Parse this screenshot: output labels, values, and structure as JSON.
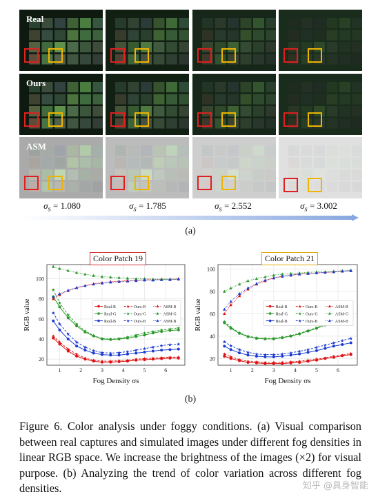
{
  "figure": {
    "row_labels": [
      "Real",
      "Ours",
      "ASM"
    ],
    "sigma_labels": [
      "1.080",
      "1.785",
      "2.552",
      "3.002"
    ],
    "sigma_symbol": "σ",
    "sigma_subscript": "s",
    "subfigure_a_label": "(a)",
    "subfigure_b_label": "(b)"
  },
  "chart_data": [
    {
      "type": "line",
      "title": "Color Patch 19",
      "title_border_color": "#d03030",
      "xlabel": "Fog Density σs",
      "ylabel": "RGB value",
      "xlim": [
        0.4,
        6.9
      ],
      "ylim": [
        14,
        114
      ],
      "xticks": [
        1,
        2,
        3,
        4,
        5,
        6
      ],
      "yticks": [
        20,
        40,
        60,
        80,
        100
      ],
      "legend_position": "center-right",
      "x": [
        0.7,
        1.0,
        1.4,
        1.8,
        2.2,
        2.6,
        3.0,
        3.4,
        3.8,
        4.2,
        4.6,
        5.0,
        5.4,
        5.8,
        6.2,
        6.6
      ],
      "series": [
        {
          "name": "Real-R",
          "color": "#e01010",
          "marker": "circle",
          "dash": "solid",
          "values": [
            41,
            35,
            28,
            23,
            20,
            18,
            17,
            17,
            17.5,
            18,
            19,
            19.5,
            20,
            20.5,
            21,
            21
          ]
        },
        {
          "name": "Real-G",
          "color": "#2a9a2a",
          "marker": "circle",
          "dash": "solid",
          "values": [
            82,
            72,
            61,
            53,
            47,
            43,
            40,
            39.5,
            40,
            41,
            42.5,
            44,
            46,
            47.5,
            48.5,
            49
          ]
        },
        {
          "name": "Real-B",
          "color": "#1a3ad0",
          "marker": "circle",
          "dash": "solid",
          "values": [
            58,
            49,
            40,
            33,
            29,
            26,
            24.5,
            24,
            24,
            25,
            26,
            27,
            28,
            29,
            29.5,
            30
          ]
        },
        {
          "name": "Ours-R",
          "color": "#e01010",
          "marker": "star",
          "dash": "dashed",
          "values": [
            43,
            37,
            30,
            25,
            21,
            19,
            18,
            18,
            18.5,
            19,
            20,
            20.5,
            21,
            21.5,
            22,
            22
          ]
        },
        {
          "name": "Ours-G",
          "color": "#2a9a2a",
          "marker": "star",
          "dash": "dashed",
          "values": [
            89,
            76,
            64,
            55,
            48,
            43.5,
            40.5,
            40,
            40.5,
            42,
            44,
            46,
            47.5,
            49,
            50,
            51
          ]
        },
        {
          "name": "Ours-B",
          "color": "#1a3ad0",
          "marker": "star",
          "dash": "dashed",
          "values": [
            66,
            55,
            45,
            37,
            32,
            28.5,
            26.5,
            26,
            26.5,
            27.5,
            29,
            30.5,
            32,
            33.5,
            34.5,
            35
          ]
        },
        {
          "name": "ASM-R",
          "color": "#e01010",
          "marker": "triangle",
          "dash": "dotted",
          "values": [
            80,
            84,
            88,
            91,
            93,
            95,
            96,
            97,
            97.5,
            98,
            98.5,
            99,
            99,
            99.5,
            99.5,
            100
          ]
        },
        {
          "name": "ASM-G",
          "color": "#2a9a2a",
          "marker": "triangle",
          "dash": "dotted",
          "values": [
            112,
            110,
            108,
            106,
            104.5,
            103,
            102,
            101.5,
            101,
            100.5,
            100,
            100,
            99.5,
            99.5,
            99.5,
            99.5
          ]
        },
        {
          "name": "ASM-B",
          "color": "#1a3ad0",
          "marker": "triangle",
          "dash": "dotted",
          "values": [
            82,
            85,
            88.5,
            91,
            93,
            94.5,
            95.5,
            96.5,
            97,
            97.5,
            98,
            98.5,
            98.5,
            99,
            99,
            99.5
          ]
        }
      ]
    },
    {
      "type": "line",
      "title": "Color Patch 21",
      "title_border_color": "#e0a800",
      "xlabel": "Fog Density σs",
      "ylabel": "RGB value",
      "xlim": [
        0.4,
        6.9
      ],
      "ylim": [
        14,
        104
      ],
      "xticks": [
        1,
        2,
        3,
        4,
        5,
        6
      ],
      "yticks": [
        20,
        40,
        60,
        80,
        100
      ],
      "legend_position": "center-right",
      "x": [
        0.7,
        1.0,
        1.4,
        1.8,
        2.2,
        2.6,
        3.0,
        3.4,
        3.8,
        4.2,
        4.6,
        5.0,
        5.4,
        5.8,
        6.2,
        6.6
      ],
      "series": [
        {
          "name": "Real-R",
          "color": "#e01010",
          "marker": "circle",
          "dash": "solid",
          "values": [
            22,
            20,
            18,
            16.5,
            16,
            15.5,
            15.5,
            15.5,
            16,
            16.5,
            17.5,
            18.5,
            20,
            21,
            22.5,
            23.5
          ]
        },
        {
          "name": "Real-G",
          "color": "#2a9a2a",
          "marker": "circle",
          "dash": "solid",
          "values": [
            52,
            47,
            42.5,
            39.5,
            38,
            37.5,
            37.5,
            38.5,
            40,
            42,
            44.5,
            47,
            50,
            52.5,
            55,
            57.5
          ]
        },
        {
          "name": "Real-B",
          "color": "#1a3ad0",
          "marker": "circle",
          "dash": "solid",
          "values": [
            31,
            28,
            25,
            23,
            22,
            21.5,
            21.5,
            22,
            23,
            24,
            25.5,
            27,
            29,
            31,
            32.5,
            34
          ]
        },
        {
          "name": "Ours-R",
          "color": "#e01010",
          "marker": "star",
          "dash": "dashed",
          "values": [
            24,
            21.5,
            19,
            17.5,
            17,
            16.5,
            16.5,
            16.5,
            17,
            17.5,
            18.5,
            19.5,
            20.5,
            22,
            23,
            24.5
          ]
        },
        {
          "name": "Ours-G",
          "color": "#2a9a2a",
          "marker": "star",
          "dash": "dashed",
          "values": [
            53,
            48,
            43,
            40,
            38.5,
            38,
            38,
            39,
            40.5,
            42.5,
            45,
            47.5,
            50.5,
            53,
            55.5,
            58
          ]
        },
        {
          "name": "Ours-B",
          "color": "#1a3ad0",
          "marker": "star",
          "dash": "dashed",
          "values": [
            35,
            31.5,
            28,
            25.5,
            24,
            23.5,
            23.5,
            24,
            25,
            26.5,
            28,
            30,
            32,
            34,
            36,
            38
          ]
        },
        {
          "name": "ASM-R",
          "color": "#e01010",
          "marker": "triangle",
          "dash": "dotted",
          "values": [
            60,
            68,
            76,
            82,
            86.5,
            89.5,
            92,
            93.5,
            94.5,
            95.5,
            96,
            96.5,
            97,
            97.5,
            98,
            98.5
          ]
        },
        {
          "name": "ASM-G",
          "color": "#2a9a2a",
          "marker": "triangle",
          "dash": "dotted",
          "values": [
            80,
            83,
            86.5,
            89.5,
            91.5,
            93,
            94.5,
            95.5,
            96,
            96.5,
            97,
            97.5,
            97.5,
            98,
            98.5,
            99
          ]
        },
        {
          "name": "ASM-B",
          "color": "#1a3ad0",
          "marker": "triangle",
          "dash": "dotted",
          "values": [
            64,
            71,
            78,
            83,
            87,
            90,
            92,
            93.5,
            94.5,
            95.5,
            96,
            96.5,
            97,
            97.5,
            98,
            98.5
          ]
        }
      ]
    }
  ],
  "caption": {
    "label": "Figure 6.",
    "text": "Color analysis under foggy conditions. (a) Visual comparison between real captures and simulated images under different fog densities in linear RGB space. We increase the brightness of the images (×2) for visual purpose. (b) Analyzing the trend of color variation across different fog densities."
  },
  "watermark": "知乎 @具身智能",
  "colors": {
    "real_background": "#0e1a10",
    "asm_background": "#c4c4c4",
    "highlight_red": "#e02020",
    "highlight_yellow": "#f0b400",
    "gradient_start": "#ffffff",
    "gradient_end": "#8aa8e0"
  }
}
